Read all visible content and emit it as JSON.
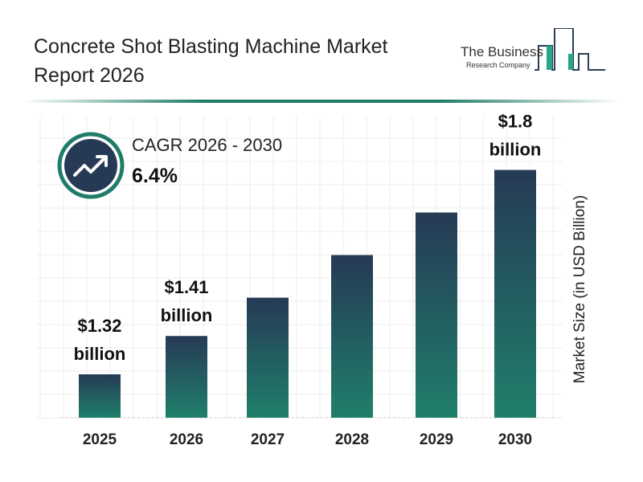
{
  "title": "Concrete Shot Blasting Machine Market Report 2026",
  "logo": {
    "line1": "The Business",
    "line2": "Research Company"
  },
  "cagr": {
    "label": "CAGR 2026 - 2030",
    "value": "6.4%",
    "icon": "trend-up-arrow-icon"
  },
  "colors": {
    "bar_top": "#263a55",
    "bar_bottom": "#1f7f6b",
    "accent": "#1f7c68",
    "icon_bg": "#263a55"
  },
  "chart_data": {
    "type": "bar",
    "categories": [
      "2025",
      "2026",
      "2027",
      "2028",
      "2029",
      "2030"
    ],
    "values": [
      1.32,
      1.41,
      1.5,
      1.6,
      1.7,
      1.8
    ],
    "data_labels": [
      "$1.32 billion",
      "$1.41 billion",
      "",
      "",
      "",
      "$1.8 billion"
    ],
    "title": "",
    "xlabel": "",
    "ylabel": "Market Size (in USD Billion)",
    "grid": true
  }
}
